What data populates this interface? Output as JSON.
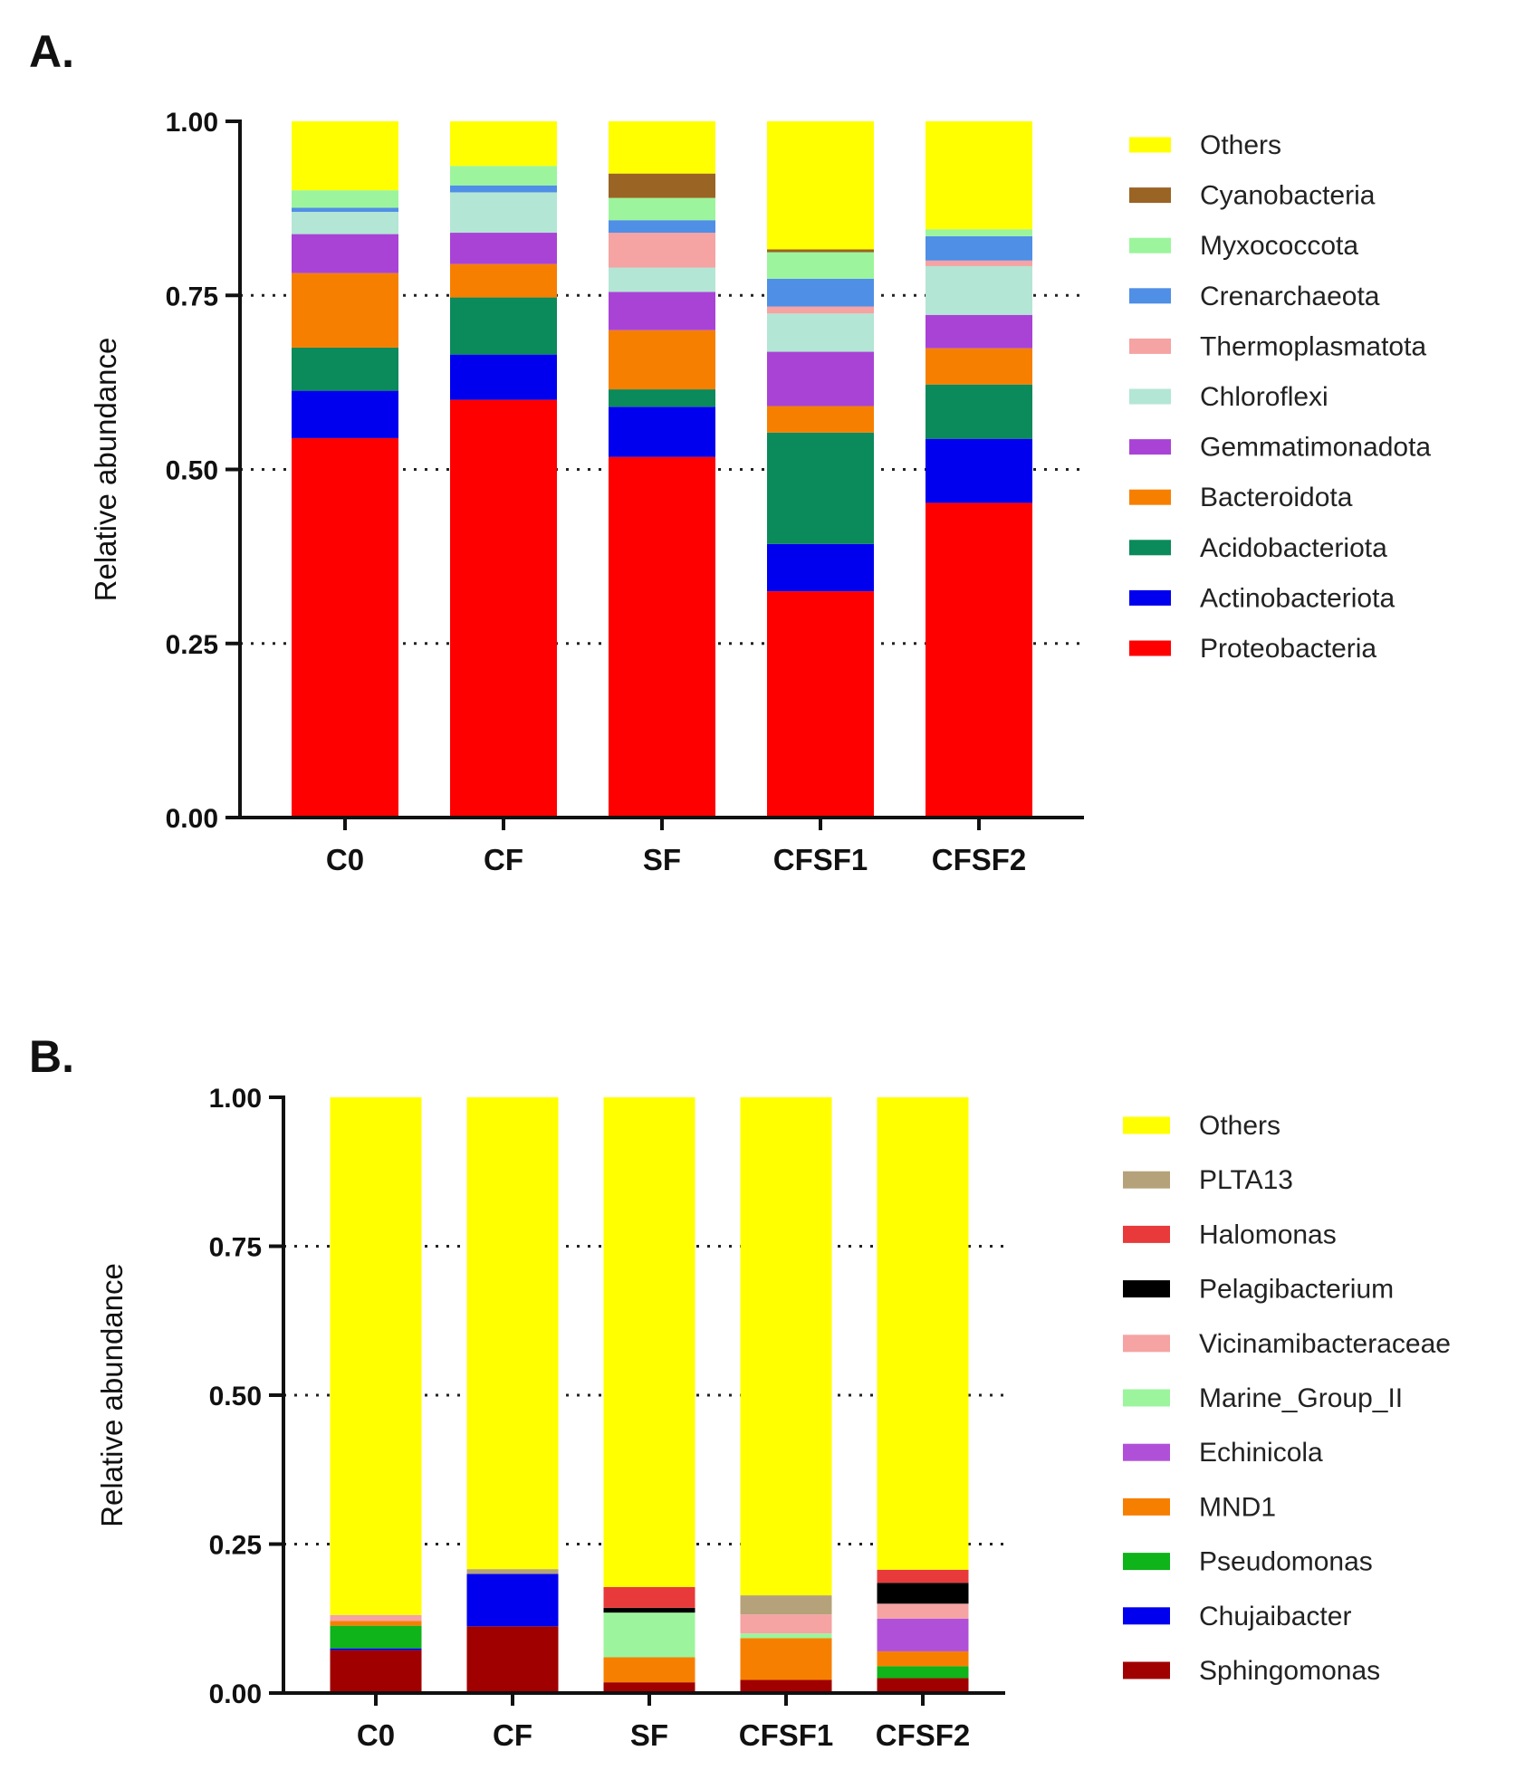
{
  "panels": {
    "a": {
      "label": "A."
    },
    "b": {
      "label": "B."
    }
  },
  "chart_data": [
    {
      "type": "bar",
      "stacked": true,
      "title": "",
      "xlabel": "",
      "ylabel": "Relative abundance",
      "ylim": [
        0,
        1
      ],
      "yticks": [
        "0.00",
        "0.25",
        "0.50",
        "0.75",
        "1.00"
      ],
      "gridlines": "dotted at 0.25, 0.50, 0.75",
      "legend_position": "right",
      "categories": [
        "C0",
        "CF",
        "SF",
        "CFSF1",
        "CFSF2"
      ],
      "series": [
        {
          "name": "Proteobacteria",
          "color": "#ff0000",
          "values": [
            0.545,
            0.6,
            0.518,
            0.325,
            0.452
          ]
        },
        {
          "name": "Actinobacteriota",
          "color": "#0000ee",
          "values": [
            0.068,
            0.065,
            0.072,
            0.068,
            0.092
          ]
        },
        {
          "name": "Acidobacteriota",
          "color": "#0b8a5b",
          "values": [
            0.062,
            0.082,
            0.025,
            0.16,
            0.078
          ]
        },
        {
          "name": "Bacteroidota",
          "color": "#f77f00",
          "values": [
            0.107,
            0.048,
            0.085,
            0.038,
            0.052
          ]
        },
        {
          "name": "Gemmatimonadota",
          "color": "#a943d6",
          "values": [
            0.056,
            0.045,
            0.055,
            0.078,
            0.048
          ]
        },
        {
          "name": "Chloroflexi",
          "color": "#b3e6d4",
          "values": [
            0.032,
            0.058,
            0.035,
            0.055,
            0.07
          ]
        },
        {
          "name": "Thermoplasmatota",
          "color": "#f5a3a3",
          "values": [
            0.0,
            0.0,
            0.05,
            0.01,
            0.008
          ]
        },
        {
          "name": "Crenarchaeota",
          "color": "#4f8fe6",
          "values": [
            0.006,
            0.01,
            0.018,
            0.04,
            0.035
          ]
        },
        {
          "name": "Myxococcota",
          "color": "#9cf59c",
          "values": [
            0.025,
            0.028,
            0.032,
            0.038,
            0.01
          ]
        },
        {
          "name": "Cyanobacteria",
          "color": "#9a6424",
          "values": [
            0.0,
            0.0,
            0.035,
            0.004,
            0.0
          ]
        },
        {
          "name": "Others",
          "color": "#ffff00",
          "values": [
            0.099,
            0.064,
            0.075,
            0.184,
            0.155
          ]
        }
      ]
    },
    {
      "type": "bar",
      "stacked": true,
      "title": "",
      "xlabel": "",
      "ylabel": "Relative abundance",
      "ylim": [
        0,
        1
      ],
      "yticks": [
        "0.00",
        "0.25",
        "0.50",
        "0.75",
        "1.00"
      ],
      "gridlines": "dotted at 0.25, 0.50, 0.75",
      "legend_position": "right",
      "categories": [
        "C0",
        "CF",
        "SF",
        "CFSF1",
        "CFSF2"
      ],
      "series": [
        {
          "name": "Sphingomonas",
          "color": "#a00000",
          "values": [
            0.072,
            0.112,
            0.018,
            0.022,
            0.025
          ]
        },
        {
          "name": "Chujaibacter",
          "color": "#0000ee",
          "values": [
            0.003,
            0.088,
            0.0,
            0.0,
            0.0
          ]
        },
        {
          "name": "Pseudomonas",
          "color": "#0fb31a",
          "values": [
            0.038,
            0.0,
            0.0,
            0.0,
            0.02
          ]
        },
        {
          "name": "MND1",
          "color": "#f77f00",
          "values": [
            0.008,
            0.0,
            0.042,
            0.07,
            0.025
          ]
        },
        {
          "name": "Echinicola",
          "color": "#b050d8",
          "values": [
            0.0,
            0.0,
            0.0,
            0.0,
            0.055
          ]
        },
        {
          "name": "Marine_Group_II",
          "color": "#9cf59c",
          "values": [
            0.0,
            0.0,
            0.075,
            0.008,
            0.0
          ]
        },
        {
          "name": "Vicinamibacteraceae",
          "color": "#f5a3a3",
          "values": [
            0.01,
            0.0,
            0.0,
            0.032,
            0.025
          ]
        },
        {
          "name": "Pelagibacterium",
          "color": "#000000",
          "values": [
            0.0,
            0.0,
            0.008,
            0.0,
            0.035
          ]
        },
        {
          "name": "Halomonas",
          "color": "#e83a3a",
          "values": [
            0.0,
            0.0,
            0.035,
            0.0,
            0.022
          ]
        },
        {
          "name": "PLTA13",
          "color": "#b5a27a",
          "values": [
            0.0,
            0.008,
            0.0,
            0.032,
            0.0
          ]
        },
        {
          "name": "Others",
          "color": "#ffff00",
          "values": [
            0.869,
            0.792,
            0.822,
            0.836,
            0.793
          ]
        }
      ]
    }
  ]
}
